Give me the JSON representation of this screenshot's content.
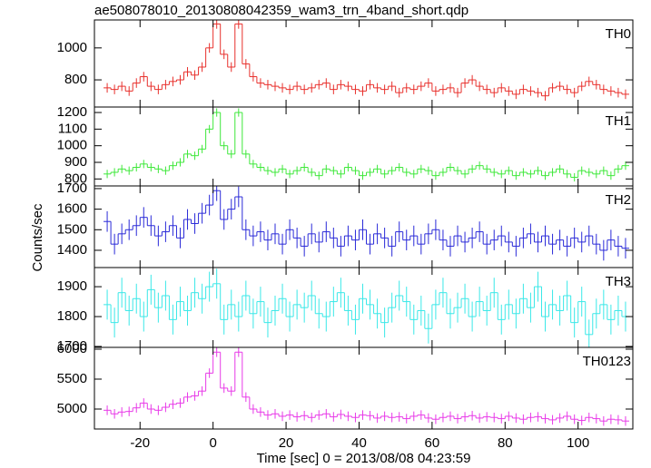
{
  "chart_data": [
    {
      "type": "step",
      "title": "ae508078010_20130808042359_wam3_trn_4band_short.qdp",
      "label": "TH0",
      "color": "#e8302c",
      "x": [
        -29,
        -27,
        -25,
        -23,
        -21,
        -19,
        -17,
        -15,
        -13,
        -11,
        -9,
        -7,
        -5,
        -3,
        -1,
        1,
        3,
        5,
        7,
        9,
        11,
        13,
        15,
        17,
        19,
        21,
        23,
        25,
        27,
        29,
        31,
        33,
        35,
        37,
        39,
        41,
        43,
        45,
        47,
        49,
        51,
        53,
        55,
        57,
        59,
        61,
        63,
        65,
        67,
        69,
        71,
        73,
        75,
        77,
        79,
        81,
        83,
        85,
        87,
        89,
        91,
        93,
        95,
        97,
        99,
        101,
        103,
        105,
        107,
        109,
        111,
        113
      ],
      "values": [
        750,
        740,
        760,
        730,
        780,
        820,
        760,
        740,
        770,
        790,
        800,
        850,
        830,
        880,
        1000,
        1150,
        960,
        880,
        1150,
        900,
        820,
        780,
        770,
        760,
        750,
        740,
        760,
        740,
        750,
        770,
        780,
        740,
        770,
        760,
        740,
        730,
        770,
        750,
        740,
        760,
        720,
        750,
        740,
        760,
        780,
        730,
        740,
        750,
        720,
        780,
        800,
        760,
        740,
        720,
        750,
        730,
        710,
        740,
        730,
        720,
        700,
        750,
        760,
        740,
        720,
        760,
        790,
        770,
        740,
        730,
        720,
        710
      ],
      "error": 30,
      "xlim": [
        -32.5,
        115
      ],
      "ylim": [
        630,
        1175
      ],
      "yticks": [
        800,
        1000
      ]
    },
    {
      "type": "step",
      "label": "TH1",
      "color": "#3ee83a",
      "x": [
        -29,
        -27,
        -25,
        -23,
        -21,
        -19,
        -17,
        -15,
        -13,
        -11,
        -9,
        -7,
        -5,
        -3,
        -1,
        1,
        3,
        5,
        7,
        9,
        11,
        13,
        15,
        17,
        19,
        21,
        23,
        25,
        27,
        29,
        31,
        33,
        35,
        37,
        39,
        41,
        43,
        45,
        47,
        49,
        51,
        53,
        55,
        57,
        59,
        61,
        63,
        65,
        67,
        69,
        71,
        73,
        75,
        77,
        79,
        81,
        83,
        85,
        87,
        89,
        91,
        93,
        95,
        97,
        99,
        101,
        103,
        105,
        107,
        109,
        111,
        113
      ],
      "values": [
        830,
        840,
        860,
        850,
        870,
        890,
        870,
        860,
        850,
        880,
        900,
        950,
        940,
        980,
        1100,
        1200,
        1000,
        950,
        1200,
        950,
        890,
        870,
        850,
        840,
        860,
        830,
        850,
        870,
        840,
        820,
        860,
        850,
        830,
        870,
        850,
        820,
        840,
        860,
        830,
        850,
        870,
        840,
        830,
        860,
        850,
        820,
        840,
        870,
        850,
        830,
        860,
        880,
        860,
        840,
        830,
        850,
        820,
        840,
        830,
        850,
        820,
        840,
        860,
        830,
        810,
        850,
        840,
        830,
        850,
        820,
        860,
        880
      ],
      "error": 25,
      "xlim": [
        -32.5,
        115
      ],
      "ylim": [
        758,
        1233
      ],
      "yticks": [
        800,
        900,
        1000,
        1100,
        1200
      ]
    },
    {
      "type": "step",
      "label": "TH2",
      "ylabel": "Counts/sec",
      "color": "#2a2ad8",
      "x": [
        -29,
        -27,
        -25,
        -23,
        -21,
        -19,
        -17,
        -15,
        -13,
        -11,
        -9,
        -7,
        -5,
        -3,
        -1,
        1,
        3,
        5,
        7,
        9,
        11,
        13,
        15,
        17,
        19,
        21,
        23,
        25,
        27,
        29,
        31,
        33,
        35,
        37,
        39,
        41,
        43,
        45,
        47,
        49,
        51,
        53,
        55,
        57,
        59,
        61,
        63,
        65,
        67,
        69,
        71,
        73,
        75,
        77,
        79,
        81,
        83,
        85,
        87,
        89,
        91,
        93,
        95,
        97,
        99,
        101,
        103,
        105,
        107,
        109,
        111,
        113
      ],
      "values": [
        1540,
        1430,
        1480,
        1500,
        1520,
        1560,
        1520,
        1470,
        1490,
        1520,
        1460,
        1550,
        1530,
        1580,
        1620,
        1690,
        1550,
        1600,
        1660,
        1500,
        1470,
        1490,
        1450,
        1480,
        1430,
        1500,
        1460,
        1420,
        1480,
        1440,
        1490,
        1460,
        1420,
        1470,
        1450,
        1500,
        1430,
        1480,
        1460,
        1420,
        1490,
        1450,
        1470,
        1430,
        1480,
        1500,
        1450,
        1420,
        1470,
        1440,
        1460,
        1490,
        1430,
        1450,
        1470,
        1440,
        1420,
        1460,
        1480,
        1440,
        1470,
        1430,
        1450,
        1420,
        1460,
        1440,
        1470,
        1430,
        1400,
        1450,
        1420,
        1410
      ],
      "error": 50,
      "xlim": [
        -32.5,
        115
      ],
      "ylim": [
        1316,
        1713
      ],
      "yticks": [
        1400,
        1500,
        1600,
        1700
      ]
    },
    {
      "type": "step",
      "label": "TH3",
      "color": "#3ae8e8",
      "x": [
        -29,
        -27,
        -25,
        -23,
        -21,
        -19,
        -17,
        -15,
        -13,
        -11,
        -9,
        -7,
        -5,
        -3,
        -1,
        1,
        3,
        5,
        7,
        9,
        11,
        13,
        15,
        17,
        19,
        21,
        23,
        25,
        27,
        29,
        31,
        33,
        35,
        37,
        39,
        41,
        43,
        45,
        47,
        49,
        51,
        53,
        55,
        57,
        59,
        61,
        63,
        65,
        67,
        69,
        71,
        73,
        75,
        77,
        79,
        81,
        83,
        85,
        87,
        89,
        91,
        93,
        95,
        97,
        99,
        101,
        103,
        105,
        107,
        109,
        111,
        113
      ],
      "values": [
        1840,
        1780,
        1880,
        1820,
        1860,
        1800,
        1890,
        1830,
        1870,
        1790,
        1850,
        1820,
        1880,
        1860,
        1900,
        1910,
        1790,
        1840,
        1800,
        1870,
        1810,
        1850,
        1780,
        1820,
        1860,
        1800,
        1840,
        1830,
        1870,
        1810,
        1800,
        1850,
        1880,
        1820,
        1790,
        1860,
        1840,
        1810,
        1780,
        1830,
        1870,
        1850,
        1790,
        1820,
        1760,
        1840,
        1880,
        1810,
        1830,
        1860,
        1800,
        1850,
        1820,
        1880,
        1790,
        1840,
        1810,
        1860,
        1830,
        1900,
        1800,
        1840,
        1820,
        1870,
        1780,
        1850,
        1740,
        1810,
        1840,
        1790,
        1820,
        1800
      ],
      "error": 50,
      "xlim": [
        -32.5,
        115
      ],
      "ylim": [
        1697,
        1964
      ],
      "yticks": [
        1700,
        1800,
        1900
      ]
    },
    {
      "type": "step",
      "label": "TH0123",
      "xlabel": "Time [sec] 0 = 2013/08/08 04:23:59",
      "color": "#e83ae8",
      "x": [
        -29,
        -27,
        -25,
        -23,
        -21,
        -19,
        -17,
        -15,
        -13,
        -11,
        -9,
        -7,
        -5,
        -3,
        -1,
        1,
        3,
        5,
        7,
        9,
        11,
        13,
        15,
        17,
        19,
        21,
        23,
        25,
        27,
        29,
        31,
        33,
        35,
        37,
        39,
        41,
        43,
        45,
        47,
        49,
        51,
        53,
        55,
        57,
        59,
        61,
        63,
        65,
        67,
        69,
        71,
        73,
        75,
        77,
        79,
        81,
        83,
        85,
        87,
        89,
        91,
        93,
        95,
        97,
        99,
        101,
        103,
        105,
        107,
        109,
        111,
        113
      ],
      "values": [
        4980,
        4920,
        4950,
        4960,
        5020,
        5100,
        5000,
        4980,
        5030,
        5080,
        5100,
        5200,
        5220,
        5300,
        5600,
        5950,
        5350,
        5300,
        5950,
        5200,
        5000,
        4950,
        4900,
        4920,
        4880,
        4900,
        4870,
        4890,
        4860,
        4900,
        4920,
        4870,
        4910,
        4880,
        4860,
        4900,
        4890,
        4850,
        4880,
        4860,
        4870,
        4840,
        4880,
        4900,
        4850,
        4830,
        4860,
        4880,
        4840,
        4870,
        4890,
        4850,
        4870,
        4860,
        4840,
        4880,
        4850,
        4830,
        4860,
        4870,
        4840,
        4820,
        4850,
        4880,
        4830,
        4810,
        4860,
        4840,
        4800,
        4830,
        4820,
        4800
      ],
      "error": 80,
      "xlim": [
        -32.5,
        115
      ],
      "ylim": [
        4667,
        6030
      ],
      "yticks": [
        5000,
        5500,
        6000
      ],
      "xticks": [
        -20,
        0,
        20,
        40,
        60,
        80,
        100
      ]
    }
  ]
}
